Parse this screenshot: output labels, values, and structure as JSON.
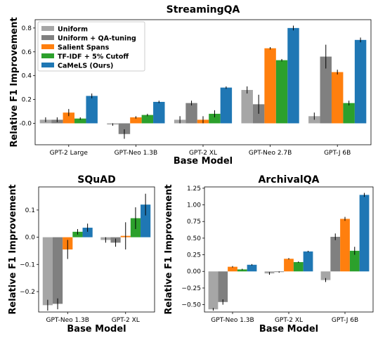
{
  "chart_data": [
    {
      "type": "bar",
      "title": "StreamingQA",
      "xlabel": "Base Model",
      "ylabel": "Relative F1 Improvement",
      "categories": [
        "GPT-2 Large",
        "GPT-Neo 1.3B",
        "GPT-2 XL",
        "GPT-Neo 2.7B",
        "GPT-J 6B"
      ],
      "ylim": [
        -0.18,
        0.87
      ],
      "yticks": [
        "-0.0",
        "0.2",
        "0.4",
        "0.6",
        "0.8"
      ],
      "ytick_values": [
        0,
        0.2,
        0.4,
        0.6,
        0.8
      ],
      "legend_position": "top-left",
      "series": [
        {
          "name": "Uniform",
          "color": "#a6a6a6",
          "values": [
            0.03,
            -0.01,
            0.03,
            0.28,
            0.06
          ],
          "errors": [
            0.02,
            0.01,
            0.03,
            0.03,
            0.03
          ]
        },
        {
          "name": "Uniform + QA-tuning",
          "color": "#808080",
          "values": [
            0.03,
            -0.09,
            0.17,
            0.16,
            0.56
          ],
          "errors": [
            0.02,
            0.04,
            0.02,
            0.08,
            0.1
          ]
        },
        {
          "name": "Salient Spans",
          "color": "#ff7f0e",
          "values": [
            0.09,
            0.05,
            0.03,
            0.63,
            0.43
          ],
          "errors": [
            0.03,
            0.01,
            0.03,
            0.01,
            0.02
          ]
        },
        {
          "name": "TF-IDF + 5% Cutoff",
          "color": "#2ca02c",
          "values": [
            0.04,
            0.07,
            0.08,
            0.53,
            0.17
          ],
          "errors": [
            0.01,
            0.01,
            0.03,
            0.01,
            0.02
          ]
        },
        {
          "name": "CaMeLS (Ours)",
          "color": "#1f77b4",
          "values": [
            0.23,
            0.18,
            0.3,
            0.8,
            0.7
          ],
          "errors": [
            0.02,
            0.01,
            0.01,
            0.02,
            0.02
          ]
        }
      ]
    },
    {
      "type": "bar",
      "title": "SQuAD",
      "xlabel": "Base Model",
      "ylabel": "Relative F1 Improvement",
      "categories": [
        "GPT-Neo 1.3B",
        "GPT-2 XL"
      ],
      "ylim": [
        -0.275,
        0.185
      ],
      "yticks": [
        "−0.2",
        "−0.1",
        "0.0",
        "0.1"
      ],
      "ytick_values": [
        -0.2,
        -0.1,
        0,
        0.1
      ],
      "series": [
        {
          "name": "Uniform",
          "color": "#a6a6a6",
          "values": [
            -0.25,
            -0.01
          ],
          "errors": [
            0.02,
            0.01
          ]
        },
        {
          "name": "Uniform + QA-tuning",
          "color": "#808080",
          "values": [
            -0.245,
            -0.02
          ],
          "errors": [
            0.02,
            0.015
          ]
        },
        {
          "name": "Salient Spans",
          "color": "#ff7f0e",
          "values": [
            -0.045,
            0.005
          ],
          "errors": [
            0.035,
            0.05
          ]
        },
        {
          "name": "TF-IDF + 5% Cutoff",
          "color": "#2ca02c",
          "values": [
            0.02,
            0.07
          ],
          "errors": [
            0.01,
            0.04
          ]
        },
        {
          "name": "CaMeLS (Ours)",
          "color": "#1f77b4",
          "values": [
            0.035,
            0.12
          ],
          "errors": [
            0.015,
            0.04
          ]
        }
      ]
    },
    {
      "type": "bar",
      "title": "ArchivalQA",
      "xlabel": "Base Model",
      "ylabel": "Relative F1 Improvement",
      "categories": [
        "GPT-Neo 1.3B",
        "GPT-2 XL",
        "GPT-J 6B"
      ],
      "ylim": [
        -0.61,
        1.27
      ],
      "yticks": [
        "−0.50",
        "−0.25",
        "0.00",
        "0.25",
        "0.50",
        "0.75",
        "1.00",
        "1.25"
      ],
      "ytick_values": [
        -0.5,
        -0.25,
        0,
        0.25,
        0.5,
        0.75,
        1.0,
        1.25
      ],
      "series": [
        {
          "name": "Uniform",
          "color": "#a6a6a6",
          "values": [
            -0.57,
            -0.03,
            -0.13
          ],
          "errors": [
            0.02,
            0.02,
            0.03
          ]
        },
        {
          "name": "Uniform + QA-tuning",
          "color": "#808080",
          "values": [
            -0.46,
            -0.01,
            0.52
          ],
          "errors": [
            0.04,
            0.01,
            0.05
          ]
        },
        {
          "name": "Salient Spans",
          "color": "#ff7f0e",
          "values": [
            0.07,
            0.19,
            0.79
          ],
          "errors": [
            0.01,
            0.01,
            0.03
          ]
        },
        {
          "name": "TF-IDF + 5% Cutoff",
          "color": "#2ca02c",
          "values": [
            0.03,
            0.14,
            0.31
          ],
          "errors": [
            0.01,
            0.01,
            0.06
          ]
        },
        {
          "name": "CaMeLS (Ours)",
          "color": "#1f77b4",
          "values": [
            0.1,
            0.3,
            1.15
          ],
          "errors": [
            0.01,
            0.01,
            0.03
          ]
        }
      ]
    }
  ]
}
